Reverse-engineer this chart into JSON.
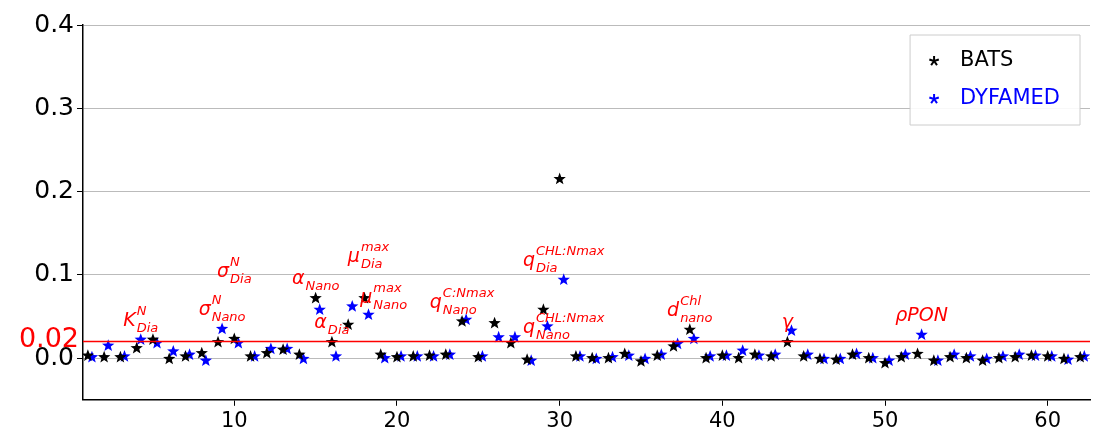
{
  "chart_data": {
    "type": "scatter",
    "legend": "top right",
    "grid": "y",
    "marker": "star",
    "xlim": [
      0.7,
      62.6
    ],
    "xticks": [
      10,
      20,
      30,
      40,
      50,
      60
    ],
    "ylim": [
      -0.05,
      0.4
    ],
    "yticks": [
      {
        "value": 0,
        "label": "0.0"
      },
      0.1,
      0.2,
      0.3,
      0.4
    ],
    "ref_lines": [
      {
        "axis": "y",
        "value": 0.02,
        "label": "0.02",
        "color": "#ff0000"
      }
    ],
    "series": [
      {
        "name": "BATS",
        "color": "#000000",
        "x": [
          1,
          2,
          3,
          4,
          5,
          6,
          7,
          8,
          9,
          10,
          11,
          12,
          13,
          14,
          15,
          16,
          17,
          18,
          19,
          20,
          21,
          22,
          23,
          24,
          25,
          26,
          27,
          28,
          29,
          30,
          31,
          32,
          33,
          34,
          35,
          36,
          37,
          38,
          39,
          40,
          41,
          42,
          43,
          44,
          45,
          46,
          47,
          48,
          49,
          50,
          51,
          52,
          53,
          54,
          55,
          56,
          57,
          58,
          59,
          60,
          61,
          62
        ],
        "values": [
          0.003,
          0.001,
          0.001,
          0.012,
          0.022,
          -0.001,
          0.002,
          0.006,
          0.019,
          0.023,
          0.002,
          0.006,
          0.01,
          0.004,
          0.072,
          0.019,
          0.04,
          0.072,
          0.004,
          0.001,
          0.002,
          0.003,
          0.004,
          0.044,
          0.001,
          0.042,
          0.018,
          -0.002,
          0.058,
          0.215,
          0.002,
          0,
          0,
          0.005,
          -0.004,
          0.003,
          0.014,
          0.034,
          0,
          0.003,
          0,
          0.004,
          0.002,
          0.019,
          0.002,
          -0.001,
          -0.002,
          0.004,
          0,
          -0.006,
          0.001,
          0.005,
          -0.003,
          0.001,
          0,
          -0.003,
          0,
          0.001,
          0.003,
          0.002,
          -0.001,
          0.001
        ]
      },
      {
        "name": "DYFAMED",
        "color": "#0000ff",
        "x": [
          1.25,
          2.25,
          3.25,
          4.25,
          5.25,
          6.25,
          7.25,
          8.25,
          9.25,
          10.25,
          11.25,
          12.25,
          13.25,
          14.25,
          15.25,
          16.25,
          17.25,
          18.25,
          19.25,
          20.25,
          21.25,
          22.25,
          23.25,
          24.25,
          25.25,
          26.25,
          27.25,
          28.25,
          29.25,
          30.25,
          31.25,
          32.25,
          33.25,
          34.25,
          35.25,
          36.25,
          37.25,
          38.25,
          39.25,
          40.25,
          41.25,
          42.25,
          43.25,
          44.25,
          45.25,
          46.25,
          47.25,
          48.25,
          49.25,
          50.25,
          51.25,
          52.25,
          53.25,
          54.25,
          55.25,
          56.25,
          57.25,
          58.25,
          59.25,
          60.25,
          61.25,
          62.25
        ],
        "values": [
          0.001,
          0.015,
          0.002,
          0.022,
          0.018,
          0.008,
          0.004,
          -0.003,
          0.035,
          0.018,
          0.002,
          0.011,
          0.011,
          -0.001,
          0.058,
          0.002,
          0.062,
          0.052,
          0,
          0.002,
          0.002,
          0.002,
          0.004,
          0.046,
          0.002,
          0.025,
          0.025,
          -0.003,
          0.038,
          0.094,
          0.002,
          -0.001,
          0.001,
          0.003,
          -0.001,
          0.004,
          0.017,
          0.023,
          0.002,
          0.003,
          0.009,
          0.003,
          0.004,
          0.033,
          0.004,
          -0.001,
          -0.001,
          0.005,
          0,
          -0.003,
          0.004,
          0.028,
          -0.003,
          0.004,
          0.002,
          -0.001,
          0.002,
          0.004,
          0.003,
          0.002,
          -0.002,
          0.002
        ]
      }
    ],
    "annotations": [
      {
        "text": "K$_{Dia}$$^{N}$",
        "x": 4.25,
        "y": 0.022
      },
      {
        "text": "σ$_{Nano}$$^{N}$",
        "x": 9.25,
        "y": 0.035
      },
      {
        "text": "σ$_{Dia}$$^{N}$",
        "x": 10,
        "y": 0.023
      },
      {
        "text": "α$_{Nano}$",
        "x": 15,
        "y": 0.072
      },
      {
        "text": "α$_{Dia}$",
        "x": 16,
        "y": 0.019
      },
      {
        "text": "μ$_{Nano}$$^{max}$",
        "x": 17.25,
        "y": 0.062
      },
      {
        "text": "μ$_{Dia}$$^{max}$",
        "x": 18.25,
        "y": 0.052
      },
      {
        "text": "q$_{Nano}$$^{C:Nmax}$",
        "x": 24,
        "y": 0.044
      },
      {
        "text": "q$_{Nano}$$^{CHL:Nmax}$",
        "x": 27.25,
        "y": 0.025
      },
      {
        "text": "q$_{Dia}$$^{CHL:Nmax}$",
        "x": 30.25,
        "y": 0.094
      },
      {
        "text": "d$_{nano}$$^{Chl}$",
        "x": 38,
        "y": 0.034
      },
      {
        "text": "γ",
        "x": 44,
        "y": 0.019
      },
      {
        "text": "ρPON",
        "x": 52.25,
        "y": 0.028
      }
    ]
  }
}
